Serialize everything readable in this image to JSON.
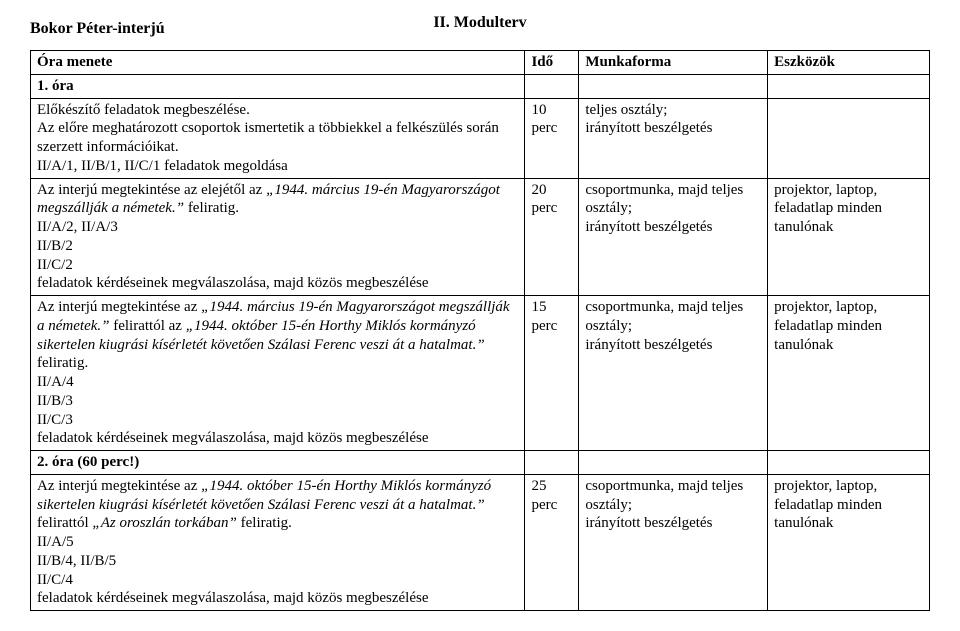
{
  "doc_title_center": "II. Modulterv",
  "doc_title_left": "Bokor Péter-interjú",
  "table": {
    "headers": {
      "c1": "Óra menete",
      "c2": "Idő",
      "c3": "Munkaforma",
      "c4": "Eszközök"
    },
    "lesson1_row": {
      "label": "1. óra"
    },
    "r1": {
      "menete_line1": "Előkészítő feladatok megbeszélése.",
      "menete_line2": "Az előre meghatározott csoportok ismertetik a többiekkel a felkészülés során szerzett információikat.",
      "menete_line3": "II/A/1, II/B/1, II/C/1 feladatok megoldása",
      "ido": "10 perc",
      "munka": "teljes osztály;\nirányított beszélgetés",
      "eszk": ""
    },
    "r2": {
      "menete_pre": "Az interjú megtekintése az elejétől az ",
      "menete_ital1": "„1944. március 19-én Magyarországot megszállják a németek.”",
      "menete_post1": " feliratig.",
      "menete_line2": "II/A/2, II/A/3",
      "menete_line3": "II/B/2",
      "menete_line4": "II/C/2",
      "menete_line5": "feladatok kérdéseinek megválaszolása, majd közös megbeszélése",
      "ido": "20 perc",
      "munka": "csoportmunka, majd teljes osztály;\nirányított beszélgetés",
      "eszk": "projektor, laptop, feladatlap minden tanulónak"
    },
    "r3": {
      "menete_pre": "Az interjú megtekintése az ",
      "menete_ital1": "„1944. március 19-én Magyarországot megszállják a németek.”",
      "menete_mid1": " felirattól az ",
      "menete_ital2": "„1944. október 15-én Horthy Miklós kormányzó sikertelen kiugrási kísérletét követően Szálasi Ferenc veszi át a hatalmat.”",
      "menete_post1": " feliratig.",
      "menete_line2": "II/A/4",
      "menete_line3": "II/B/3",
      "menete_line4": "II/C/3",
      "menete_line5": "feladatok kérdéseinek megválaszolása, majd közös megbeszélése",
      "ido": "15 perc",
      "munka": "csoportmunka, majd teljes osztály;\nirányított beszélgetés",
      "eszk": "projektor, laptop, feladatlap minden tanulónak"
    },
    "lesson2_row": {
      "label": "2. óra (60 perc!)"
    },
    "r4": {
      "menete_pre": "Az interjú megtekintése az ",
      "menete_ital1": "„1944. október 15-én Horthy Miklós kormányzó sikertelen kiugrási kísérletét követően Szálasi Ferenc veszi át a hatalmat.”",
      "menete_mid1": " felirattól ",
      "menete_ital2": "„Az oroszlán torkában”",
      "menete_post1": " feliratig.",
      "menete_line2": "II/A/5",
      "menete_line3": "II/B/4, II/B/5",
      "menete_line4": "II/C/4",
      "menete_line5": "feladatok kérdéseinek megválaszolása, majd közös megbeszélése",
      "ido": "25 perc",
      "munka": "csoportmunka, majd teljes osztály;\nirányított beszélgetés",
      "eszk": "projektor, laptop, feladatlap minden tanulónak"
    }
  }
}
